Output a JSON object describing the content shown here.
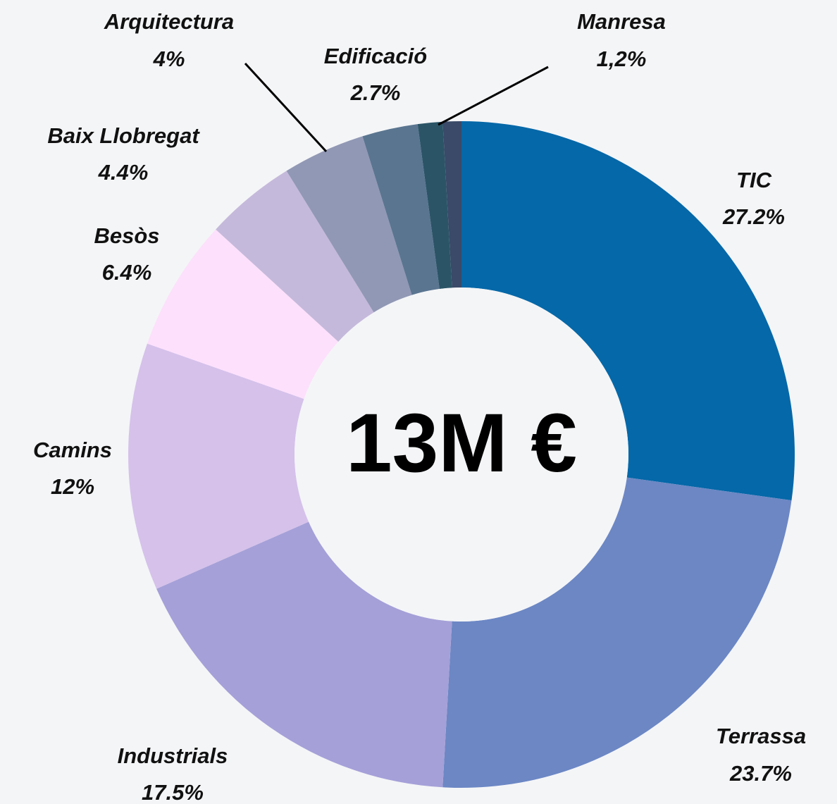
{
  "chart_data": {
    "type": "donut",
    "center_label": "13M €",
    "categories": [
      "TIC",
      "Terrassa",
      "Industrials",
      "Camins",
      "Besòs",
      "Baix Llobregat",
      "Arquitectura",
      "Edificació",
      "Manresa",
      null
    ],
    "values": [
      27.2,
      23.7,
      17.5,
      12,
      6.4,
      4.4,
      4,
      2.7,
      1.2,
      0.9
    ],
    "value_labels": [
      "27.2%",
      "23.7%",
      "17.5%",
      "12%",
      "6.4%",
      "4.4%",
      "4%",
      "2.7%",
      "1,2%",
      null
    ],
    "colors": [
      "#0568a8",
      "#6c87c4",
      "#a5a0d8",
      "#d5c1ea",
      "#fde0fc",
      "#c5b9db",
      "#9198b5",
      "#5a7590",
      "#2b5567",
      "#3a4a68"
    ]
  }
}
